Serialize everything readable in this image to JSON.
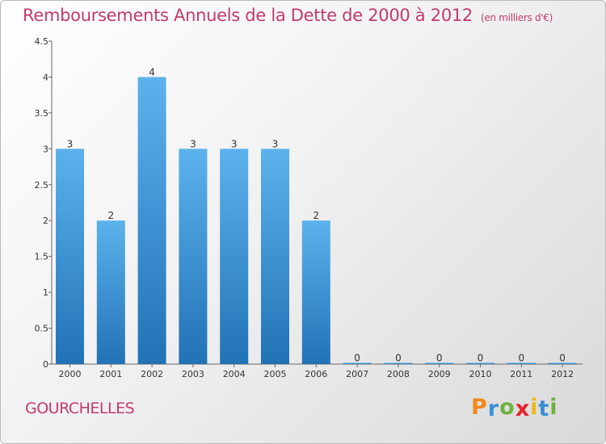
{
  "chart_data": {
    "type": "bar",
    "title": "Remboursements Annuels de la Dette de 2000 à 2012",
    "subtitle": "(en milliers d'€)",
    "categories": [
      "2000",
      "2001",
      "2002",
      "2003",
      "2004",
      "2005",
      "2006",
      "2007",
      "2008",
      "2009",
      "2010",
      "2011",
      "2012"
    ],
    "values": [
      3,
      2,
      4,
      3,
      3,
      3,
      2,
      0,
      0,
      0,
      0,
      0,
      0
    ],
    "data_labels": [
      "3",
      "2",
      "4",
      "3",
      "3",
      "3",
      "2",
      "0",
      "0",
      "0",
      "0",
      "0",
      "0"
    ],
    "yticks": [
      0,
      0.5,
      1,
      1.5,
      2,
      2.5,
      3,
      3.5,
      4,
      4.5
    ],
    "ytick_labels": [
      "0",
      "0.5",
      "1",
      "1.5",
      "2",
      "2.5",
      "3",
      "3.5",
      "4",
      "4.5"
    ],
    "ylim": [
      0,
      4.5
    ],
    "xlabel": "",
    "ylabel": "",
    "grid": false,
    "bar_color": "#4a9fdf"
  },
  "commune": "GOURCHELLES",
  "logo": {
    "text": "Proxiti",
    "letters": [
      "P",
      "r",
      "o",
      "x",
      "i",
      "t",
      "i"
    ],
    "colors": [
      "#f08a1c",
      "#3a8fd6",
      "#6db33f",
      "#e8202a",
      "#f0b81c",
      "#3a8fd6",
      "#6db33f"
    ]
  }
}
